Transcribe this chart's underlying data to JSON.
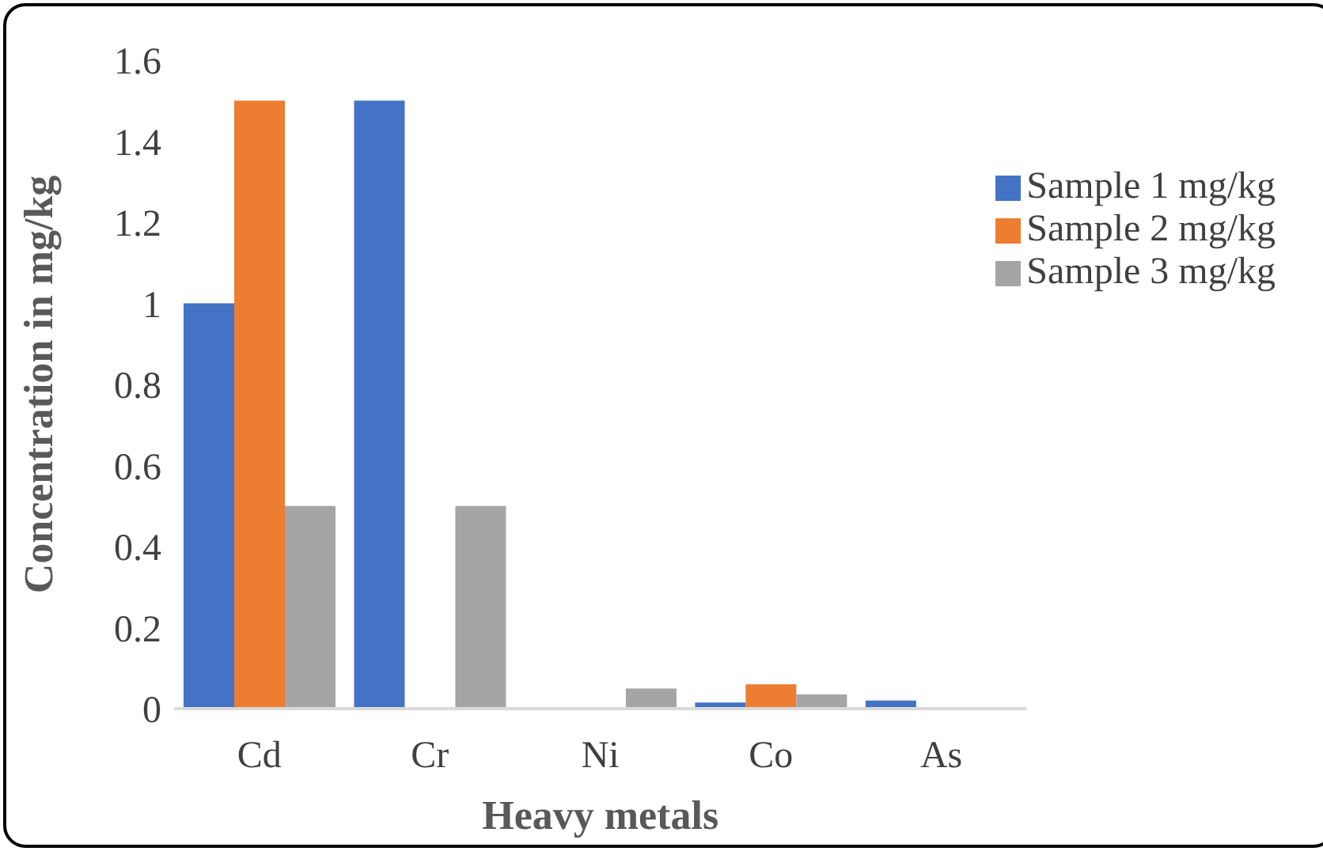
{
  "chart_data": {
    "type": "bar",
    "xlabel": "Heavy metals",
    "ylabel": "Concentration in mg/kg",
    "categories": [
      "Cd",
      "Cr",
      "Ni",
      "Co",
      "As"
    ],
    "series": [
      {
        "name": "Sample 1 mg/kg",
        "color": "#4472c4",
        "values": [
          1,
          1.5,
          0,
          0.015,
          0.02
        ]
      },
      {
        "name": "Sample 2 mg/kg",
        "color": "#ed7d31",
        "values": [
          1.5,
          0,
          0,
          0.06,
          0
        ]
      },
      {
        "name": "Sample 3 mg/kg",
        "color": "#a5a5a5",
        "values": [
          0.5,
          0.5,
          0.05,
          0.035,
          0
        ]
      }
    ],
    "ylim": [
      0,
      1.6
    ],
    "yticks": [
      0,
      0.2,
      0.4,
      0.6,
      0.8,
      1,
      1.2,
      1.4,
      1.6
    ],
    "grid": false,
    "legend": "right"
  }
}
